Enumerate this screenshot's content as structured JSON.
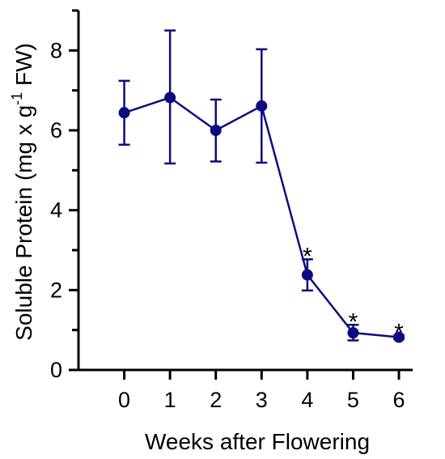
{
  "chart_data": {
    "type": "line",
    "title": "",
    "xlabel": "Weeks after Flowering",
    "ylabel": {
      "main": "Soluble Protein (mg x g",
      "superscript": "-1",
      "suffix": " FW)"
    },
    "x": [
      0,
      1,
      2,
      3,
      4,
      5,
      6
    ],
    "x_ticks": [
      "0",
      "1",
      "2",
      "3",
      "4",
      "5",
      "6"
    ],
    "xlim": [
      -1,
      6.3
    ],
    "ylim": [
      0,
      9
    ],
    "y_ticks": [
      "0",
      "2",
      "4",
      "6",
      "8"
    ],
    "y_tick_values": [
      0,
      2,
      4,
      6,
      8
    ],
    "y_minor_tick_values": [
      1,
      3,
      5,
      7,
      9
    ],
    "series": [
      {
        "values": [
          6.44,
          6.82,
          6.0,
          6.61,
          2.38,
          0.93,
          0.82
        ],
        "err_upper": [
          7.24,
          8.5,
          6.77,
          8.03,
          2.77,
          1.13,
          0.86
        ],
        "err_lower": [
          5.64,
          5.17,
          5.22,
          5.19,
          1.99,
          0.74,
          0.78
        ],
        "color": "#0c0c80"
      }
    ],
    "annotations": [
      {
        "x": 4,
        "text": "*"
      },
      {
        "x": 5,
        "text": "*"
      },
      {
        "x": 6,
        "text": "*"
      }
    ],
    "grid": false,
    "legend": "none"
  }
}
